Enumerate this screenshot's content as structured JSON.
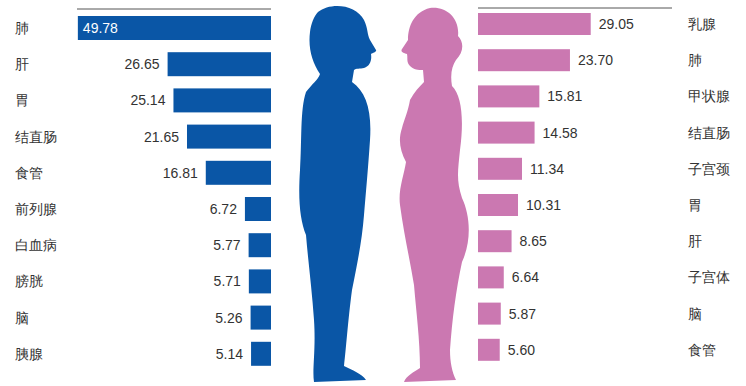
{
  "chart_data": [
    {
      "type": "bar",
      "orientation": "horizontal",
      "categories": [
        "肺",
        "肝",
        "胃",
        "结直肠",
        "食管",
        "前列腺",
        "白血病",
        "膀胱",
        "脑",
        "胰腺"
      ],
      "values": [
        49.78,
        26.65,
        25.14,
        21.65,
        16.81,
        6.72,
        5.77,
        5.71,
        5.26,
        5.14
      ],
      "color": "#0a56a6",
      "xlim": [
        0,
        50
      ],
      "data_labels": true,
      "tick_labels": "y"
    },
    {
      "type": "bar",
      "orientation": "horizontal",
      "categories": [
        "乳腺",
        "肺",
        "甲状腺",
        "结直肠",
        "子宫颈",
        "胃",
        "肝",
        "子宫体",
        "脑",
        "食管"
      ],
      "values": [
        29.05,
        23.7,
        15.81,
        14.58,
        11.34,
        10.31,
        8.65,
        6.64,
        5.87,
        5.6
      ],
      "value_labels": [
        "29.05",
        "23.70",
        "15.81",
        "14.58",
        "11.34",
        "10.31",
        "8.65",
        "6.64",
        "5.87",
        "5.60"
      ],
      "color": "#cb78b1",
      "xlim": [
        0,
        50
      ],
      "data_labels": true,
      "tick_labels": "y"
    }
  ]
}
